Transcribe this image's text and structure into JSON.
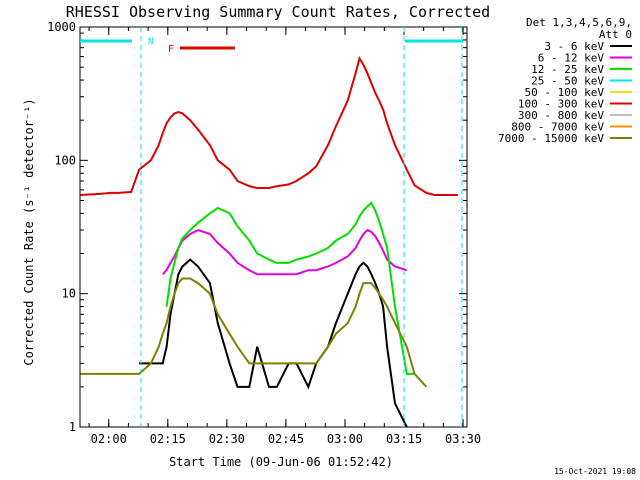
{
  "chart_data": {
    "type": "line",
    "title": "RHESSI Observing Summary Count Rates, Corrected",
    "xlabel": "Start Time (09-Jun-06 01:52:42)",
    "ylabel": "Corrected Count Rate (s⁻¹ detector⁻¹)",
    "y_scale": "log",
    "ylim": [
      1,
      1000
    ],
    "xlim": [
      "01:52:42",
      "03:31:00"
    ],
    "x_ticks": [
      "02:00",
      "02:15",
      "02:30",
      "02:45",
      "03:00",
      "03:15",
      "03:30"
    ],
    "y_ticks": [
      "1",
      "10",
      "100",
      "1000"
    ],
    "legend_header": [
      "Det 1,3,4,5,6,9,",
      "Att 0"
    ],
    "legend_position": "right",
    "flags": [
      {
        "label": "N",
        "color": "#00e5e5"
      },
      {
        "label": "F",
        "color": "#e00000"
      }
    ],
    "x_minutes": [
      0,
      5,
      8,
      10,
      13,
      15,
      18,
      20,
      21,
      22,
      23,
      24,
      25,
      26,
      28,
      30,
      33,
      35,
      38,
      40,
      43,
      45,
      48,
      50,
      53,
      55,
      58,
      60,
      63,
      65,
      68,
      70,
      71,
      72,
      73,
      74,
      75,
      76,
      77,
      78,
      80,
      83,
      85,
      88,
      90,
      93,
      96
    ],
    "series": [
      {
        "name": "3 - 6 keV",
        "color": "#000000",
        "values": [
          null,
          null,
          null,
          null,
          null,
          3,
          3,
          3,
          3,
          4,
          7,
          10,
          14,
          16,
          18,
          16,
          12,
          6,
          3,
          2,
          2,
          4,
          2,
          2,
          3,
          3,
          2,
          3,
          4,
          6,
          10,
          14,
          16,
          17,
          16,
          14,
          12,
          10,
          8,
          4,
          1.5,
          1,
          null,
          null,
          null,
          null,
          null
        ]
      },
      {
        "name": "6 - 12 keV",
        "color": "#e000e0",
        "values": [
          null,
          null,
          null,
          null,
          null,
          null,
          null,
          null,
          14,
          15,
          17,
          19,
          22,
          25,
          28,
          30,
          28,
          24,
          20,
          17,
          15,
          14,
          14,
          14,
          14,
          14,
          15,
          15,
          16,
          17,
          19,
          22,
          25,
          28,
          30,
          29,
          27,
          24,
          21,
          18,
          16,
          15,
          null,
          null,
          null,
          null,
          null
        ]
      },
      {
        "name": "12 - 25 keV",
        "color": "#00e000",
        "values": [
          null,
          null,
          null,
          null,
          null,
          null,
          null,
          null,
          null,
          8,
          13,
          17,
          22,
          26,
          30,
          34,
          40,
          44,
          40,
          32,
          25,
          20,
          18,
          17,
          17,
          18,
          19,
          20,
          22,
          25,
          28,
          33,
          38,
          42,
          45,
          48,
          42,
          35,
          28,
          22,
          8,
          2.5,
          2.5,
          null,
          null,
          null,
          null
        ]
      },
      {
        "name": "25 - 50 keV",
        "color": "#00e5e5",
        "values": [
          null,
          null,
          null,
          null,
          null,
          null,
          null,
          null,
          null,
          null,
          null,
          null,
          null,
          null,
          null,
          null,
          null,
          null,
          null,
          null,
          null,
          null,
          null,
          null,
          null,
          null,
          null,
          null,
          null,
          null,
          null,
          null,
          null,
          null,
          null,
          null,
          null,
          null,
          null,
          null,
          null,
          null,
          null,
          null,
          null,
          null,
          null
        ]
      },
      {
        "name": "50 - 100 keV",
        "color": "#e5e500",
        "values": [
          null,
          null,
          null,
          null,
          null,
          null,
          null,
          null,
          null,
          null,
          null,
          null,
          null,
          null,
          null,
          null,
          null,
          null,
          null,
          null,
          null,
          null,
          null,
          null,
          null,
          null,
          null,
          null,
          null,
          null,
          null,
          null,
          null,
          null,
          null,
          null,
          null,
          null,
          null,
          null,
          null,
          null,
          null,
          null,
          null,
          null,
          null
        ]
      },
      {
        "name": "100 - 300 keV",
        "color": "#e00000",
        "values": [
          55,
          56,
          57,
          57,
          58,
          85,
          100,
          130,
          160,
          190,
          210,
          225,
          230,
          225,
          200,
          170,
          130,
          100,
          85,
          70,
          64,
          62,
          62,
          64,
          66,
          70,
          80,
          90,
          130,
          180,
          280,
          450,
          580,
          520,
          450,
          380,
          320,
          280,
          240,
          190,
          130,
          85,
          65,
          57,
          55,
          55,
          55
        ]
      },
      {
        "name": "300 - 800 keV",
        "color": "#c0c0c0",
        "values": [
          null,
          null,
          null,
          null,
          null,
          null,
          null,
          null,
          null,
          null,
          null,
          null,
          null,
          null,
          null,
          null,
          null,
          null,
          null,
          null,
          null,
          null,
          null,
          null,
          null,
          null,
          null,
          null,
          null,
          null,
          null,
          null,
          null,
          null,
          null,
          null,
          null,
          null,
          null,
          null,
          null,
          null,
          null,
          null,
          null,
          null,
          null
        ]
      },
      {
        "name": "800 - 7000 keV",
        "color": "#ff8c00",
        "values": [
          null,
          null,
          null,
          null,
          null,
          null,
          null,
          null,
          null,
          null,
          null,
          null,
          null,
          null,
          null,
          null,
          null,
          null,
          null,
          null,
          null,
          null,
          null,
          null,
          null,
          null,
          null,
          null,
          null,
          null,
          null,
          null,
          null,
          null,
          null,
          null,
          null,
          null,
          null,
          null,
          null,
          null,
          null,
          null,
          null,
          null,
          null
        ]
      },
      {
        "name": "7000 - 15000 keV",
        "color": "#808000",
        "values": [
          2.5,
          2.5,
          2.5,
          2.5,
          2.5,
          2.5,
          3,
          4,
          5,
          6,
          8,
          10,
          12,
          13,
          13,
          12,
          10,
          7,
          5,
          4,
          3,
          3,
          3,
          3,
          3,
          3,
          3,
          3,
          4,
          5,
          6,
          8,
          10,
          12,
          12,
          12,
          11,
          10,
          9,
          8,
          6,
          4,
          2.5,
          2,
          null,
          null,
          null
        ]
      }
    ]
  },
  "footer": {
    "date_stamp": "15-Oct-2021 19:08"
  }
}
